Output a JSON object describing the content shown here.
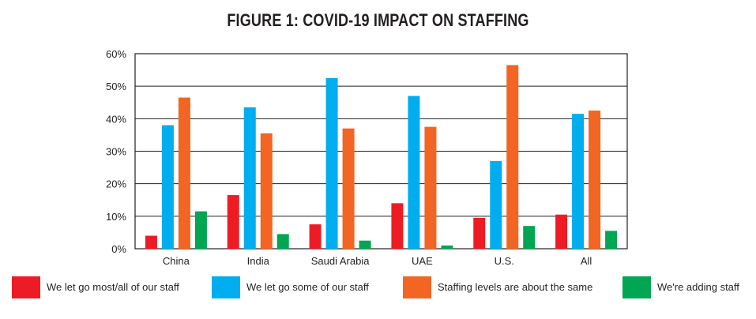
{
  "chart_data": {
    "type": "bar",
    "title": "FIGURE 1: COVID-19 IMPACT ON STAFFING",
    "xlabel": "",
    "ylabel": "",
    "categories": [
      "China",
      "India",
      "Saudi Arabia",
      "UAE",
      "U.S.",
      "All"
    ],
    "ylim": [
      0,
      60
    ],
    "yticks": [
      "0%",
      "10%",
      "20%",
      "30%",
      "40%",
      "50%",
      "60%"
    ],
    "grid": true,
    "legend_position": "bottom",
    "series": [
      {
        "name": "We let go most/all of our staff",
        "color": "#ed1c24",
        "values": [
          4,
          16.5,
          7.5,
          14,
          9.5,
          10.5
        ]
      },
      {
        "name": "We let go some of our staff",
        "color": "#00aeef",
        "values": [
          38,
          43.5,
          52.5,
          47,
          27,
          41.5
        ]
      },
      {
        "name": "Staffing levels are about the same",
        "color": "#f26522",
        "values": [
          46.5,
          35.5,
          37,
          37.5,
          56.5,
          42.5
        ]
      },
      {
        "name": "We're adding staff",
        "color": "#00a651",
        "values": [
          11.5,
          4.5,
          2.5,
          1,
          7,
          5.5
        ]
      }
    ]
  }
}
